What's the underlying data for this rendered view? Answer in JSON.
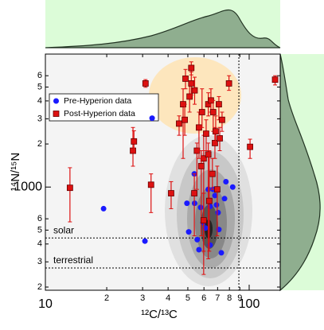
{
  "chart_data": {
    "type": "scatter",
    "x_label": "¹²C/¹³C",
    "y_label": "¹⁴N/¹⁵N",
    "log_x": true,
    "log_y": true,
    "legend": "upper left",
    "xlim": [
      10,
      142
    ],
    "ylim": [
      190,
      8500
    ],
    "xticks": [
      10,
      {
        "value": 20,
        "label": "2"
      },
      {
        "value": 30,
        "label": "3"
      },
      {
        "value": 40,
        "label": "4"
      },
      {
        "value": 50,
        "label": "5"
      },
      {
        "value": 60,
        "label": "6"
      },
      {
        "value": 70,
        "label": "7"
      },
      {
        "value": 80,
        "label": "8"
      },
      {
        "value": 90,
        "label": "9"
      },
      100
    ],
    "yticks": [
      {
        "value": 200,
        "label": "2"
      },
      {
        "value": 300,
        "label": "3"
      },
      {
        "value": 400,
        "label": "4"
      },
      {
        "value": 500,
        "label": "5"
      },
      {
        "value": 600,
        "label": "6"
      },
      1000,
      {
        "value": 2000,
        "label": "2"
      },
      {
        "value": 3000,
        "label": "3"
      },
      {
        "value": 4000,
        "label": "4"
      },
      {
        "value": 5000,
        "label": "5"
      },
      {
        "value": 6000,
        "label": "6"
      }
    ],
    "hlines": [
      {
        "value": 441,
        "label": "solar"
      },
      {
        "value": 272,
        "label": "terrestrial"
      }
    ],
    "vline": 89,
    "series": [
      {
        "name": "Pre-Hyperion data",
        "color": "#1a1aff",
        "marker": "circle",
        "x": [
          19.3,
          30.8,
          33.4,
          49.5,
          50.5,
          53.8,
          54,
          55.6,
          56.7,
          57.8,
          59.4,
          61,
          63,
          64.3,
          64.3,
          66.6,
          67.9,
          69.1,
          70.4,
          71,
          73,
          75.7,
          83,
          76.9
        ],
        "y": [
          706,
          419,
          3030,
          770,
          486,
          1236,
          770,
          429,
          365,
          720,
          564,
          517,
          963,
          733,
          393,
          963,
          872,
          750,
          663,
          505,
          347,
          830,
          1000,
          1090
        ]
      },
      {
        "name": "Post-Hyperion data",
        "color": "#dd1111",
        "marker": "square",
        "x": [
          13.2,
          26.9,
          27.2,
          31.0,
          33.0,
          41.4,
          45.3,
          47.4,
          48.3,
          48.7,
          51.0,
          52,
          54,
          55.4,
          52,
          56.7,
          58.7,
          59.8,
          61.5,
          63,
          64.9,
          66,
          66.6,
          67.9,
          68.5,
          71,
          71.7,
          73.6,
          63,
          63.7,
          58.2,
          59.8,
          53.8,
          69.7,
          79.6,
          101,
          134
        ],
        "y": [
          988,
          1795,
          2085,
          5300,
          1038,
          905,
          2777,
          3790,
          2950,
          5720,
          4290,
          5300,
          4740,
          1795,
          6800,
          2607,
          3340,
          1585,
          2360,
          3790,
          4030,
          1236,
          3340,
          2030,
          2450,
          3790,
          2190,
          2950,
          1690,
          800,
          1400,
          585,
          905,
          963,
          5300,
          1910,
          5630
        ],
        "ylow": [
          571,
          1399,
          1751,
          4980,
          663,
          706,
          2300,
          1585,
          2300,
          4860,
          3340,
          4400,
          3790,
          963,
          6080,
          1585,
          2607,
          245,
          1795,
          3140,
          3340,
          963,
          2450,
          1585,
          2030,
          2950,
          1795,
          2450,
          315,
          356,
          456,
          356,
          456,
          456,
          4740,
          1585,
          5170
        ],
        "yhigh": [
          1365,
          2609,
          2474,
          5640,
          1236,
          1091,
          3143,
          4860,
          3790,
          6640,
          5500,
          6380,
          5860,
          2030,
          7500,
          3340,
          4860,
          2300,
          2950,
          4560,
          4860,
          1585,
          4030,
          2607,
          3140,
          4290,
          2610,
          3340,
          2030,
          1795,
          1795,
          905,
          1236,
          1400,
          6000,
          2160,
          6000
        ]
      }
    ]
  }
}
